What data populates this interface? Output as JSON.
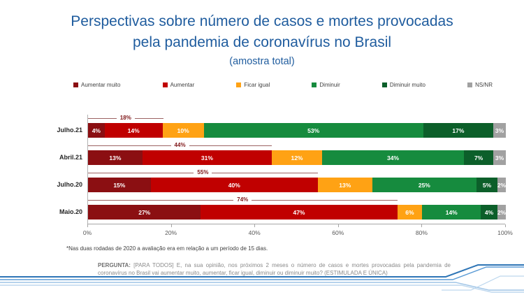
{
  "title": {
    "line1": "Perspectivas sobre número de casos e mortes provocadas",
    "line2": "pela pandemia de coronavírus no Brasil",
    "subtitle": "(amostra total)"
  },
  "chart_data": {
    "type": "bar",
    "orientation": "horizontal-stacked",
    "title": "Perspectivas sobre número de casos e mortes provocadas pela pandemia de coronavírus no Brasil (amostra total)",
    "categories": [
      "Julho.21",
      "Abril.21",
      "Julho.20",
      "Maio.20"
    ],
    "series": [
      {
        "name": "Aumentar muito",
        "color": "#8B0F12",
        "values": [
          4,
          13,
          15,
          27
        ]
      },
      {
        "name": "Aumentar",
        "color": "#C00000",
        "values": [
          14,
          31,
          40,
          47
        ]
      },
      {
        "name": "Ficar igual",
        "color": "#FFA214",
        "values": [
          10,
          12,
          13,
          6
        ]
      },
      {
        "name": "Diminuir",
        "color": "#168B3E",
        "values": [
          53,
          34,
          25,
          14
        ]
      },
      {
        "name": "Diminuir muito",
        "color": "#0C5F2A",
        "values": [
          17,
          7,
          5,
          4
        ]
      },
      {
        "name": "NS/NR",
        "color": "#A1A1A1",
        "values": [
          3,
          3,
          2,
          2
        ]
      }
    ],
    "bracket_annotations": {
      "description": "sum of 'Aumentar muito' + 'Aumentar' shown above each bar",
      "values": [
        18,
        44,
        55,
        74
      ],
      "labels": [
        "18%",
        "44%",
        "55%",
        "74%"
      ]
    },
    "x_ticks": [
      "0%",
      "20%",
      "40%",
      "60%",
      "80%",
      "100%"
    ],
    "xlim": [
      0,
      100
    ],
    "legend_position": "top",
    "value_suffix": "%"
  },
  "footnote": "*Nas duas rodadas de 2020 a avaliação era em relação a um período de 15 dias.",
  "question": {
    "label": "PERGUNTA:",
    "text": " [PARA TODOS] E, na sua opinião, nos próximos 2 meses o número de casos e mortes provocadas pela pandemia de coronavírus no Brasil vai aumentar muito, aumentar, ficar igual, diminuir ou diminuir muito? (ESTIMULADA E ÚNICA)"
  },
  "colors": {
    "title_blue": "#1F5C9E",
    "bracket_line": "#9c6262",
    "bracket_text": "#7E1416",
    "footer_blue_dark": "#2E75B6",
    "footer_blue_light": "#9DC3E6",
    "footer_blue_pale": "#BDD7EE"
  }
}
